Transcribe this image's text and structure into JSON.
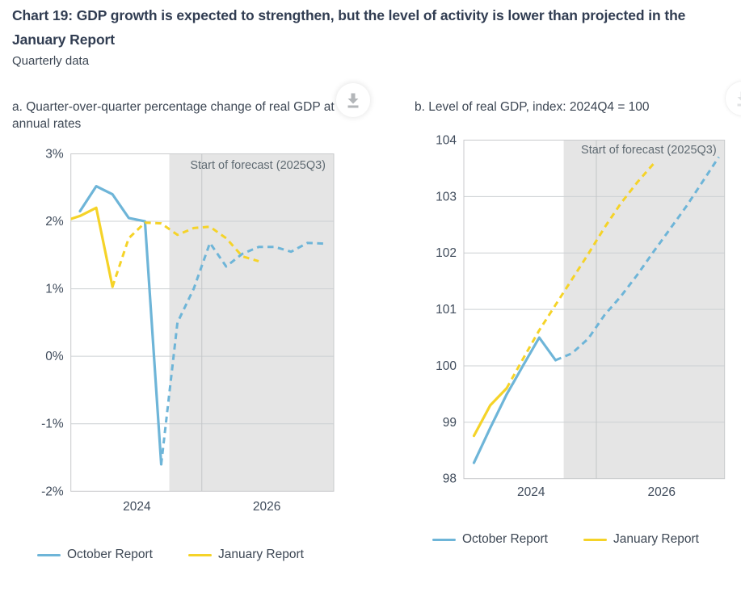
{
  "page": {
    "title": "Chart 19: GDP growth is expected to strengthen, but the level of activity is lower than projected in the January Report",
    "subtitle": "Quarterly data"
  },
  "colors": {
    "october": "#6eb5d8",
    "january": "#f5d328",
    "forecast_shading": "#e5e5e5",
    "plot_border": "#c8cacc",
    "gridline": "#ccd0d3",
    "year_gridline": "#c4c6c8",
    "axis_text": "#3f4b5b",
    "forecast_label_text": "#5f6a72",
    "title_text": "#313d52",
    "download_icon": "#b3b6b9"
  },
  "legend": {
    "october_label": "October Report",
    "january_label": "January Report"
  },
  "icons": {
    "panel_a": "download-icon",
    "panel_b": "download-icon"
  },
  "chart_data": [
    {
      "panel": "a",
      "type": "line",
      "title": "a. Quarter-over-quarter percentage change of real GDP at annual rates",
      "y_unit": "percent",
      "ylim": [
        -2,
        3
      ],
      "grid": true,
      "legend_position": "bottom",
      "y_ticks": [
        {
          "value": 3,
          "label": "3%"
        },
        {
          "value": 2,
          "label": "2%"
        },
        {
          "value": 1,
          "label": "1%"
        },
        {
          "value": 0,
          "label": "0%"
        },
        {
          "value": -1,
          "label": "-1%"
        },
        {
          "value": -2,
          "label": "-2%"
        }
      ],
      "x_year_labels": [
        {
          "label": "2024",
          "boundary_after": "2024Q4"
        },
        {
          "label": "2026",
          "boundary_after": "2026Q4"
        }
      ],
      "x_gridlines_after": [
        "2025Q4"
      ],
      "forecast": {
        "label": "Start of forecast (2025Q3)",
        "shading_from_after": "2025Q2"
      },
      "series": [
        {
          "name": "October Report",
          "color_key": "october",
          "start": "2024Q1",
          "history": [
            2.15,
            2.52,
            2.4,
            2.05,
            2.0,
            -1.6
          ],
          "forecast": [
            0.5,
            1.0,
            1.68,
            1.33,
            1.52,
            1.62,
            1.62,
            1.55,
            1.68,
            1.67
          ]
        },
        {
          "name": "January Report",
          "color_key": "january",
          "start": "2023Q4",
          "history": [
            2.0,
            2.08,
            2.2,
            1.03
          ],
          "forecast": [
            1.75,
            1.98,
            1.97,
            1.8,
            1.9,
            1.92,
            1.75,
            1.48,
            1.41
          ]
        }
      ]
    },
    {
      "panel": "b",
      "type": "line",
      "title": "b. Level of real GDP, index: 2024Q4 = 100",
      "y_unit": "index (2024Q4 = 100)",
      "ylim": [
        98,
        104
      ],
      "grid": true,
      "legend_position": "bottom",
      "y_ticks": [
        {
          "value": 104,
          "label": "104"
        },
        {
          "value": 103,
          "label": "103"
        },
        {
          "value": 102,
          "label": "102"
        },
        {
          "value": 101,
          "label": "101"
        },
        {
          "value": 100,
          "label": "100"
        },
        {
          "value": 99,
          "label": "99"
        },
        {
          "value": 98,
          "label": "98"
        }
      ],
      "x_year_labels": [
        {
          "label": "2024",
          "boundary_after": "2024Q4"
        },
        {
          "label": "2026",
          "boundary_after": "2026Q4"
        }
      ],
      "x_gridlines_after": [
        "2025Q4"
      ],
      "forecast": {
        "label": "Start of forecast (2025Q3)",
        "shading_from_after": "2025Q2"
      },
      "series": [
        {
          "name": "October Report",
          "color_key": "october",
          "start": "2024Q1",
          "history": [
            98.28,
            98.9,
            99.49,
            100.0,
            100.5,
            100.1
          ],
          "forecast": [
            100.22,
            100.48,
            100.9,
            101.23,
            101.61,
            102.02,
            102.42,
            102.82,
            103.26,
            103.7
          ]
        },
        {
          "name": "January Report",
          "color_key": "january",
          "start": "2024Q1",
          "history": [
            98.76,
            99.3,
            99.6
          ],
          "forecast": [
            100.12,
            100.63,
            101.08,
            101.53,
            101.98,
            102.45,
            102.88,
            103.25,
            103.58
          ]
        }
      ]
    }
  ]
}
